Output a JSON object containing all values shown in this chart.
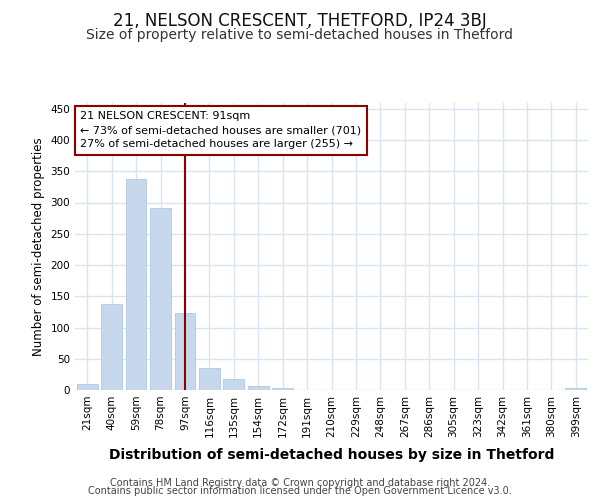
{
  "title": "21, NELSON CRESCENT, THETFORD, IP24 3BJ",
  "subtitle": "Size of property relative to semi-detached houses in Thetford",
  "xlabel": "Distribution of semi-detached houses by size in Thetford",
  "ylabel": "Number of semi-detached properties",
  "footer1": "Contains HM Land Registry data © Crown copyright and database right 2024.",
  "footer2": "Contains public sector information licensed under the Open Government Licence v3.0.",
  "categories": [
    "21sqm",
    "40sqm",
    "59sqm",
    "78sqm",
    "97sqm",
    "116sqm",
    "135sqm",
    "154sqm",
    "172sqm",
    "191sqm",
    "210sqm",
    "229sqm",
    "248sqm",
    "267sqm",
    "286sqm",
    "305sqm",
    "323sqm",
    "342sqm",
    "361sqm",
    "380sqm",
    "399sqm"
  ],
  "values": [
    10,
    137,
    337,
    292,
    123,
    35,
    18,
    6,
    4,
    0,
    0,
    0,
    0,
    0,
    0,
    0,
    0,
    0,
    0,
    0,
    4
  ],
  "bar_color": "#c8d8ec",
  "bar_edge_color": "#b0c8e0",
  "vline_color": "#8b0000",
  "vline_x": 4.5,
  "annotation_text": "21 NELSON CRESCENT: 91sqm\n← 73% of semi-detached houses are smaller (701)\n27% of semi-detached houses are larger (255) →",
  "annotation_box_color": "#ffffff",
  "annotation_box_edge_color": "#8b0000",
  "ylim": [
    0,
    460
  ],
  "yticks": [
    0,
    50,
    100,
    150,
    200,
    250,
    300,
    350,
    400,
    450
  ],
  "bg_color": "#ffffff",
  "plot_bg_color": "#ffffff",
  "grid_color": "#d8e4f0",
  "title_fontsize": 12,
  "subtitle_fontsize": 10,
  "xlabel_fontsize": 10,
  "ylabel_fontsize": 8.5,
  "tick_fontsize": 7.5,
  "annotation_fontsize": 8,
  "footer_fontsize": 7
}
